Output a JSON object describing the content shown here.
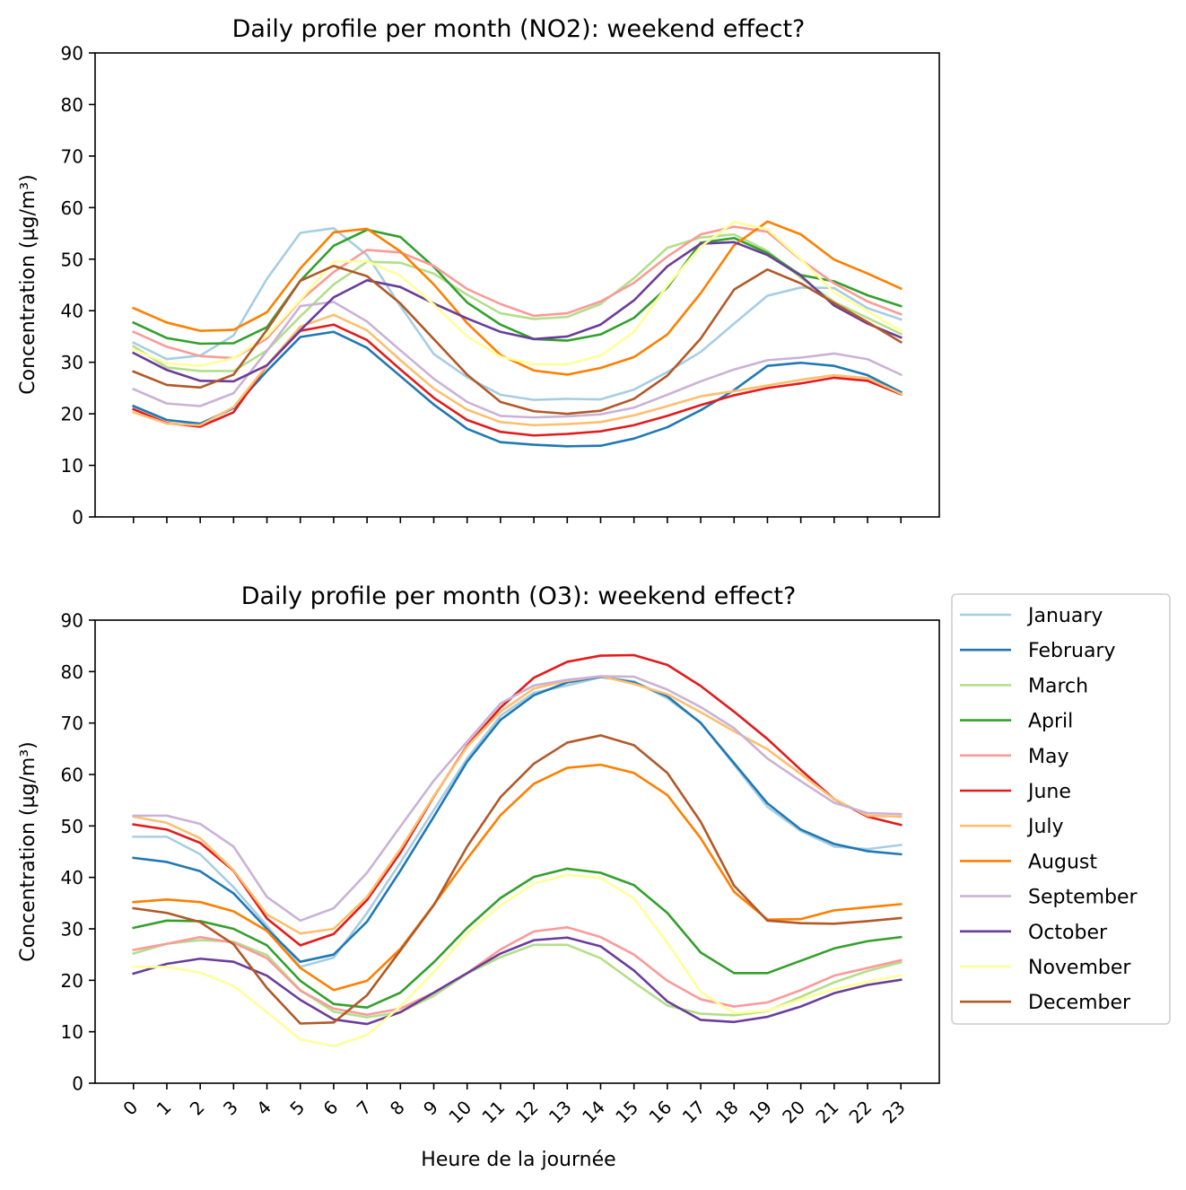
{
  "chart_data": [
    {
      "type": "line",
      "title": "Daily profile per month (NO2): weekend effect?",
      "xlabel": "",
      "ylabel": "Concentration (µg/m³)",
      "x": [
        0,
        1,
        2,
        3,
        4,
        5,
        6,
        7,
        8,
        9,
        10,
        11,
        12,
        13,
        14,
        15,
        16,
        17,
        18,
        19,
        20,
        21,
        22,
        23
      ],
      "ylim": [
        0,
        90
      ],
      "yticks": [
        0,
        10,
        20,
        30,
        40,
        50,
        60,
        70,
        80,
        90
      ],
      "grid": false,
      "series": [
        {
          "name": "January",
          "color": "#a6cee3",
          "values": [
            33.8,
            30.6,
            31.3,
            35.2,
            46.2,
            55.1,
            56.0,
            50.8,
            40.9,
            31.6,
            27.1,
            23.7,
            22.7,
            22.9,
            22.8,
            24.7,
            28.1,
            32.0,
            37.5,
            42.9,
            44.5,
            44.4,
            40.5,
            38.3
          ]
        },
        {
          "name": "February",
          "color": "#1f78b4",
          "values": [
            21.5,
            18.8,
            18.1,
            21.1,
            28.3,
            34.9,
            35.9,
            32.8,
            27.3,
            21.8,
            17.1,
            14.5,
            14.0,
            13.7,
            13.8,
            15.2,
            17.4,
            20.7,
            24.6,
            29.3,
            29.9,
            29.3,
            27.5,
            24.2
          ]
        },
        {
          "name": "March",
          "color": "#b2df8a",
          "values": [
            33.1,
            29.0,
            28.3,
            28.3,
            32.3,
            38.9,
            45.1,
            49.5,
            49.3,
            47.2,
            43.1,
            39.5,
            38.4,
            38.8,
            41.3,
            46.3,
            52.2,
            54.2,
            54.8,
            51.6,
            46.4,
            41.7,
            38.6,
            35.5
          ]
        },
        {
          "name": "April",
          "color": "#33a02c",
          "values": [
            37.7,
            34.7,
            33.6,
            33.7,
            36.8,
            45.8,
            52.6,
            55.7,
            54.3,
            48.5,
            41.6,
            37.3,
            34.5,
            34.2,
            35.4,
            38.6,
            44.5,
            53.2,
            54.1,
            51.2,
            46.9,
            45.7,
            43.0,
            40.9
          ]
        },
        {
          "name": "May",
          "color": "#fb9a99",
          "values": [
            35.9,
            33.0,
            31.2,
            30.8,
            34.6,
            42.0,
            47.5,
            51.8,
            51.3,
            48.7,
            44.2,
            41.3,
            39.0,
            39.5,
            41.8,
            45.4,
            50.5,
            54.8,
            56.3,
            55.3,
            49.9,
            45.3,
            41.8,
            39.3
          ]
        },
        {
          "name": "June",
          "color": "#e31a1c",
          "values": [
            20.9,
            18.2,
            17.5,
            20.3,
            29.4,
            36.1,
            37.3,
            34.3,
            28.6,
            23.1,
            18.8,
            16.5,
            15.8,
            16.1,
            16.6,
            17.8,
            19.6,
            21.7,
            23.6,
            25.0,
            25.9,
            27.0,
            26.4,
            23.8
          ]
        },
        {
          "name": "July",
          "color": "#fdbf6f",
          "values": [
            20.3,
            18.1,
            17.8,
            21.3,
            29.4,
            36.9,
            39.2,
            36.2,
            30.4,
            24.9,
            20.8,
            18.4,
            17.8,
            18.0,
            18.4,
            19.7,
            21.5,
            23.4,
            24.4,
            25.5,
            26.6,
            27.5,
            26.9,
            23.9
          ]
        },
        {
          "name": "August",
          "color": "#ff7f00",
          "values": [
            40.5,
            37.7,
            36.1,
            36.3,
            39.7,
            48.2,
            55.2,
            55.9,
            51.5,
            45.1,
            37.6,
            31.4,
            28.4,
            27.6,
            28.9,
            31.0,
            35.4,
            43.4,
            52.7,
            57.3,
            54.8,
            49.9,
            47.2,
            44.3
          ]
        },
        {
          "name": "September",
          "color": "#cab2d6",
          "values": [
            24.8,
            22.0,
            21.5,
            24.0,
            32.2,
            40.9,
            41.7,
            37.9,
            32.3,
            26.8,
            22.3,
            19.6,
            19.3,
            19.5,
            19.9,
            21.2,
            23.7,
            26.3,
            28.6,
            30.4,
            30.9,
            31.7,
            30.6,
            27.6
          ]
        },
        {
          "name": "October",
          "color": "#6a3d9a",
          "values": [
            31.8,
            28.5,
            26.4,
            26.3,
            29.4,
            36.2,
            42.6,
            45.9,
            44.6,
            41.4,
            38.5,
            35.9,
            34.5,
            35.0,
            37.3,
            42.0,
            48.6,
            53.0,
            53.3,
            50.8,
            46.8,
            41.0,
            37.5,
            34.8
          ]
        },
        {
          "name": "November",
          "color": "#ffff99",
          "values": [
            32.5,
            29.8,
            29.3,
            30.8,
            35.1,
            42.1,
            49.5,
            49.6,
            46.8,
            41.2,
            35.0,
            31.1,
            29.6,
            29.6,
            31.3,
            35.9,
            44.9,
            52.4,
            57.2,
            55.8,
            50.0,
            43.5,
            39.9,
            36.1
          ]
        },
        {
          "name": "December",
          "color": "#b15928",
          "values": [
            28.2,
            25.6,
            25.1,
            27.6,
            36.3,
            45.8,
            48.7,
            46.7,
            41.4,
            34.5,
            27.6,
            22.3,
            20.5,
            20.0,
            20.6,
            22.9,
            27.4,
            34.6,
            44.1,
            48.0,
            45.3,
            41.5,
            37.8,
            33.9
          ]
        }
      ]
    },
    {
      "type": "line",
      "title": "Daily profile per month (O3): weekend effect?",
      "xlabel": "Heure de la journée",
      "ylabel": "Concentration (µg/m³)",
      "x": [
        0,
        1,
        2,
        3,
        4,
        5,
        6,
        7,
        8,
        9,
        10,
        11,
        12,
        13,
        14,
        15,
        16,
        17,
        18,
        19,
        20,
        21,
        22,
        23
      ],
      "ylim": [
        0,
        90
      ],
      "yticks": [
        0,
        10,
        20,
        30,
        40,
        50,
        60,
        70,
        80,
        90
      ],
      "grid": false,
      "legend_position": "outside-right",
      "series": [
        {
          "name": "January",
          "color": "#a6cee3",
          "values": [
            47.9,
            47.9,
            44.5,
            38.1,
            30.6,
            22.6,
            24.4,
            33.1,
            42.9,
            53.1,
            63.1,
            71.4,
            75.9,
            77.3,
            78.9,
            78.1,
            74.8,
            70.1,
            61.9,
            53.7,
            49.0,
            46.0,
            45.5,
            46.3
          ]
        },
        {
          "name": "February",
          "color": "#1f78b4",
          "values": [
            43.8,
            43.0,
            41.2,
            36.9,
            30.0,
            23.6,
            25.0,
            31.4,
            41.3,
            51.8,
            62.5,
            70.6,
            75.4,
            77.9,
            79.0,
            77.9,
            75.2,
            70.0,
            62.2,
            54.4,
            49.3,
            46.5,
            45.1,
            44.5
          ]
        },
        {
          "name": "March",
          "color": "#b2df8a",
          "values": [
            25.2,
            27.1,
            27.8,
            27.5,
            24.9,
            18.1,
            13.9,
            12.8,
            13.8,
            17.0,
            21.3,
            24.5,
            26.9,
            26.9,
            24.3,
            19.6,
            15.1,
            13.5,
            13.2,
            14.0,
            16.8,
            19.6,
            21.8,
            23.5
          ]
        },
        {
          "name": "April",
          "color": "#33a02c",
          "values": [
            30.2,
            31.6,
            31.5,
            30.0,
            26.8,
            19.9,
            15.4,
            14.7,
            17.6,
            23.5,
            30.2,
            36.0,
            40.1,
            41.7,
            40.9,
            38.5,
            33.1,
            25.4,
            21.4,
            21.4,
            23.8,
            26.2,
            27.6,
            28.4
          ]
        },
        {
          "name": "May",
          "color": "#fb9a99",
          "values": [
            25.9,
            27.1,
            28.4,
            27.3,
            24.3,
            18.0,
            14.5,
            13.3,
            14.5,
            17.6,
            21.4,
            26.0,
            29.5,
            30.3,
            28.4,
            25.0,
            19.9,
            16.3,
            14.9,
            15.7,
            18.1,
            20.9,
            22.4,
            23.9
          ]
        },
        {
          "name": "June",
          "color": "#e31a1c",
          "values": [
            50.3,
            49.3,
            46.7,
            41.3,
            32.0,
            26.8,
            29.0,
            35.6,
            44.8,
            55.7,
            65.6,
            73.0,
            78.8,
            81.9,
            83.1,
            83.2,
            81.3,
            77.2,
            72.2,
            66.9,
            60.9,
            55.2,
            51.8,
            50.2
          ]
        },
        {
          "name": "July",
          "color": "#fdbf6f",
          "values": [
            51.8,
            50.6,
            47.6,
            41.4,
            32.8,
            29.1,
            30.0,
            36.2,
            45.5,
            55.8,
            65.4,
            72.2,
            76.7,
            78.2,
            79.1,
            77.6,
            75.6,
            72.1,
            68.4,
            64.9,
            60.1,
            55.2,
            52.0,
            51.8
          ]
        },
        {
          "name": "August",
          "color": "#ff7f00",
          "values": [
            35.2,
            35.7,
            35.2,
            33.4,
            29.6,
            22.4,
            18.1,
            19.9,
            26.1,
            34.7,
            43.6,
            52.1,
            58.2,
            61.3,
            61.9,
            60.3,
            56.0,
            47.6,
            37.2,
            31.8,
            31.9,
            33.6,
            34.2,
            34.8
          ]
        },
        {
          "name": "September",
          "color": "#cab2d6",
          "values": [
            52.0,
            52.0,
            50.4,
            46.0,
            36.2,
            31.6,
            34.0,
            40.9,
            49.9,
            58.8,
            66.4,
            73.8,
            77.3,
            78.4,
            79.1,
            79.0,
            76.5,
            73.1,
            69.0,
            63.1,
            58.7,
            54.5,
            52.5,
            52.3
          ]
        },
        {
          "name": "October",
          "color": "#6a3d9a",
          "values": [
            21.3,
            23.2,
            24.2,
            23.6,
            20.9,
            16.2,
            12.4,
            11.5,
            13.8,
            17.6,
            21.4,
            25.2,
            27.8,
            28.3,
            26.6,
            21.9,
            15.9,
            12.3,
            11.9,
            12.9,
            14.9,
            17.5,
            19.1,
            20.1
          ]
        },
        {
          "name": "November",
          "color": "#ffff99",
          "values": [
            22.6,
            22.6,
            21.5,
            18.9,
            13.8,
            8.5,
            7.2,
            9.4,
            14.9,
            21.6,
            29.1,
            34.6,
            38.8,
            40.5,
            39.9,
            35.9,
            27.3,
            17.7,
            13.6,
            14.1,
            16.3,
            18.3,
            19.7,
            21.0
          ]
        },
        {
          "name": "December",
          "color": "#b15928",
          "values": [
            34.0,
            33.1,
            31.3,
            27.0,
            18.5,
            11.6,
            11.8,
            17.1,
            25.8,
            34.6,
            46.0,
            55.6,
            62.1,
            66.2,
            67.6,
            65.7,
            60.3,
            50.8,
            38.4,
            31.6,
            31.1,
            31.0,
            31.5,
            32.1
          ]
        }
      ]
    }
  ]
}
